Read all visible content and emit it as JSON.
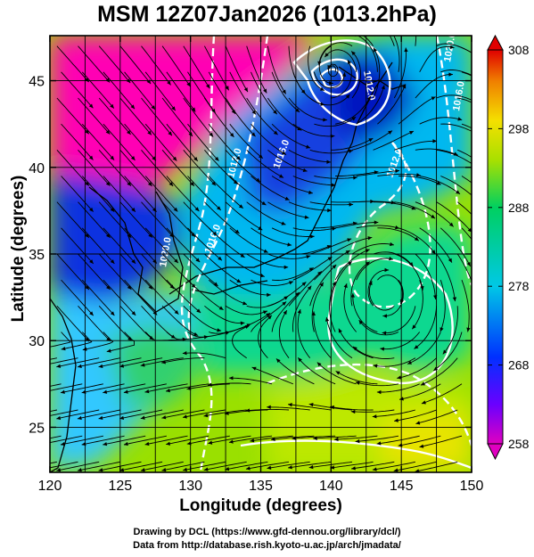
{
  "title": "MSM 12Z07Jan2026 (1013.2hPa)",
  "x_axis": {
    "label": "Longitude (degrees)",
    "ticks": [
      120,
      125,
      130,
      135,
      140,
      145,
      150
    ],
    "range": [
      120,
      150
    ]
  },
  "y_axis": {
    "label": "Latitude  (degrees)",
    "ticks": [
      25,
      30,
      35,
      40,
      45
    ],
    "range": [
      22.4,
      47.6
    ]
  },
  "colorbar": {
    "ticks": [
      258,
      268,
      278,
      288,
      298,
      308
    ],
    "range": [
      258,
      308
    ],
    "colors": [
      "#e000c0",
      "#6a00ff",
      "#0030ff",
      "#00c8e6",
      "#00d060",
      "#a8e000",
      "#f4e000",
      "#f08000",
      "#e00000"
    ]
  },
  "contour_labels": [
    "1020.0",
    "1016.0",
    "1012.0",
    "1016.0",
    "1012.0",
    "1012.0",
    "1016.0",
    "1020.0"
  ],
  "credits": [
    "Drawing by DCL (https://www.gfd-dennou.org/library/dcl/)",
    "Data from http://database.rish.kyoto-u.ac.jp/arch/jmadata/"
  ]
}
